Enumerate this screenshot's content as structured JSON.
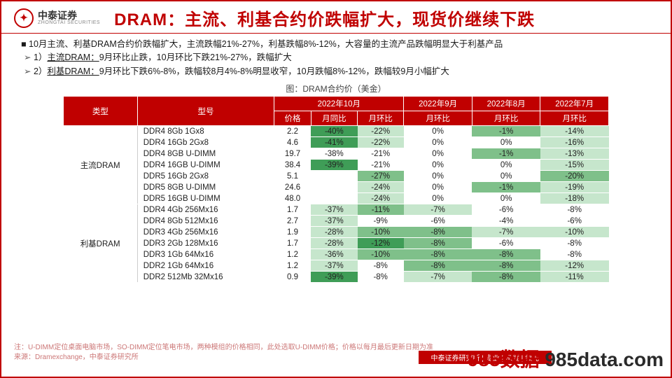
{
  "logo": {
    "cn": "中泰证券",
    "en": "ZHONGTAI SECURITIES"
  },
  "title": "DRAM：主流、利基合约价跌幅扩大，现货价继续下跌",
  "bullets": {
    "main": "10月主流、利基DRAM合约价跌幅扩大，主流跌幅21%-27%，利基跌幅8%-12%，大容量的主流产品跌幅明显大于利基产品",
    "sub1a": "1）",
    "sub1u": "主流DRAM：",
    "sub1b": "9月环比止跌，10月环比下跌21%-27%，跌幅扩大",
    "sub2a": "2）",
    "sub2u": "利基DRAM：",
    "sub2b": "9月环比下跌6%-8%，跌幅较8月4%-8%明显收窄，10月跌幅8%-12%，跌幅较9月小幅扩大"
  },
  "chart_title": "图：DRAM合约价（美金）",
  "columns": {
    "type": "类型",
    "model": "型号",
    "oct": "2022年10月",
    "price": "价格",
    "yoy": "月同比",
    "mom": "月环比",
    "sep": "2022年9月",
    "aug": "2022年8月",
    "jul": "2022年7月"
  },
  "heat_palette": {
    "deep": "#3f9d57",
    "mid": "#7fc08a",
    "light": "#c6e6cc",
    "faint": "#e9f5eb",
    "none": "#ffffff"
  },
  "groups": [
    {
      "name": "主流DRAM",
      "rows": [
        {
          "model": "DDR4 8Gb 1Gx8",
          "price": "2.2",
          "yoy": "-40%",
          "yoy_c": "deep",
          "m10": "-22%",
          "m10_c": "light",
          "m9": "0%",
          "m9_c": "none",
          "m8": "-1%",
          "m8_c": "mid",
          "m7": "-14%",
          "m7_c": "light"
        },
        {
          "model": "DDR4 16Gb 2Gx8",
          "price": "4.6",
          "yoy": "-41%",
          "yoy_c": "deep",
          "m10": "-22%",
          "m10_c": "light",
          "m9": "0%",
          "m9_c": "none",
          "m8": "0%",
          "m8_c": "none",
          "m7": "-16%",
          "m7_c": "light"
        },
        {
          "model": "DDR4 8GB  U-DIMM",
          "price": "19.7",
          "yoy": "-38%",
          "yoy_c": "none",
          "m10": "-21%",
          "m10_c": "none",
          "m9": "0%",
          "m9_c": "none",
          "m8": "-1%",
          "m8_c": "mid",
          "m7": "-13%",
          "m7_c": "light"
        },
        {
          "model": "DDR4 16GB  U-DIMM",
          "price": "38.4",
          "yoy": "-39%",
          "yoy_c": "deep",
          "m10": "-21%",
          "m10_c": "none",
          "m9": "0%",
          "m9_c": "none",
          "m8": "0%",
          "m8_c": "none",
          "m7": "-15%",
          "m7_c": "light"
        },
        {
          "model": "DDR5 16Gb  2Gx8",
          "price": "5.1",
          "yoy": "",
          "yoy_c": "none",
          "m10": "-27%",
          "m10_c": "mid",
          "m9": "0%",
          "m9_c": "none",
          "m8": "0%",
          "m8_c": "none",
          "m7": "-20%",
          "m7_c": "mid"
        },
        {
          "model": "DDR5 8GB  U-DIMM",
          "price": "24.6",
          "yoy": "",
          "yoy_c": "none",
          "m10": "-24%",
          "m10_c": "light",
          "m9": "0%",
          "m9_c": "none",
          "m8": "-1%",
          "m8_c": "mid",
          "m7": "-19%",
          "m7_c": "light"
        },
        {
          "model": "DDR5 16GB  U-DIMM",
          "price": "48.0",
          "yoy": "",
          "yoy_c": "none",
          "m10": "-24%",
          "m10_c": "light",
          "m9": "0%",
          "m9_c": "none",
          "m8": "0%",
          "m8_c": "none",
          "m7": "-18%",
          "m7_c": "light"
        }
      ]
    },
    {
      "name": "利基DRAM",
      "rows": [
        {
          "model": "DDR4 4Gb 256Mx16",
          "price": "1.7",
          "yoy": "-37%",
          "yoy_c": "light",
          "m10": "-11%",
          "m10_c": "mid",
          "m9": "-7%",
          "m9_c": "light",
          "m8": "-6%",
          "m8_c": "none",
          "m7": "-8%",
          "m7_c": "none"
        },
        {
          "model": "DDR4 8Gb 512Mx16",
          "price": "2.7",
          "yoy": "-37%",
          "yoy_c": "light",
          "m10": "-9%",
          "m10_c": "none",
          "m9": "-6%",
          "m9_c": "none",
          "m8": "-4%",
          "m8_c": "none",
          "m7": "-6%",
          "m7_c": "none"
        },
        {
          "model": "DDR3 4Gb 256Mx16",
          "price": "1.9",
          "yoy": "-28%",
          "yoy_c": "light",
          "m10": "-10%",
          "m10_c": "mid",
          "m9": "-8%",
          "m9_c": "mid",
          "m8": "-7%",
          "m8_c": "light",
          "m7": "-10%",
          "m7_c": "light"
        },
        {
          "model": "DDR3 2Gb 128Mx16",
          "price": "1.7",
          "yoy": "-28%",
          "yoy_c": "light",
          "m10": "-12%",
          "m10_c": "deep",
          "m9": "-8%",
          "m9_c": "mid",
          "m8": "-6%",
          "m8_c": "none",
          "m7": "-8%",
          "m7_c": "none"
        },
        {
          "model": "DDR3 1Gb 64Mx16",
          "price": "1.2",
          "yoy": "-36%",
          "yoy_c": "light",
          "m10": "-10%",
          "m10_c": "mid",
          "m9": "-8%",
          "m9_c": "mid",
          "m8": "-8%",
          "m8_c": "mid",
          "m7": "-8%",
          "m7_c": "none"
        },
        {
          "model": "DDR2 1Gb 64Mx16",
          "price": "1.2",
          "yoy": "-37%",
          "yoy_c": "light",
          "m10": "-8%",
          "m10_c": "none",
          "m9": "-8%",
          "m9_c": "mid",
          "m8": "-8%",
          "m8_c": "mid",
          "m7": "-12%",
          "m7_c": "light"
        },
        {
          "model": "DDR2 512Mb 32Mx16",
          "price": "0.9",
          "yoy": "-39%",
          "yoy_c": "deep",
          "m10": "-8%",
          "m10_c": "none",
          "m9": "-7%",
          "m9_c": "light",
          "m8": "-8%",
          "m8_c": "mid",
          "m7": "-11%",
          "m7_c": "light"
        }
      ]
    }
  ],
  "footnote": {
    "l1": "注：U-DIMM定位桌面电脑市场，SO-DIMM定位笔电市场，两种模组的价格相同，此处选取U-DIMM价格；价格以每月最后更新日期为准",
    "l2": "来源：Dramexchange，中泰证券研究所"
  },
  "pagebox": "中泰证券研究所 | 专业 | 深度 | 领先",
  "watermark_a": "985数据",
  "watermark_b": "  985data.com"
}
